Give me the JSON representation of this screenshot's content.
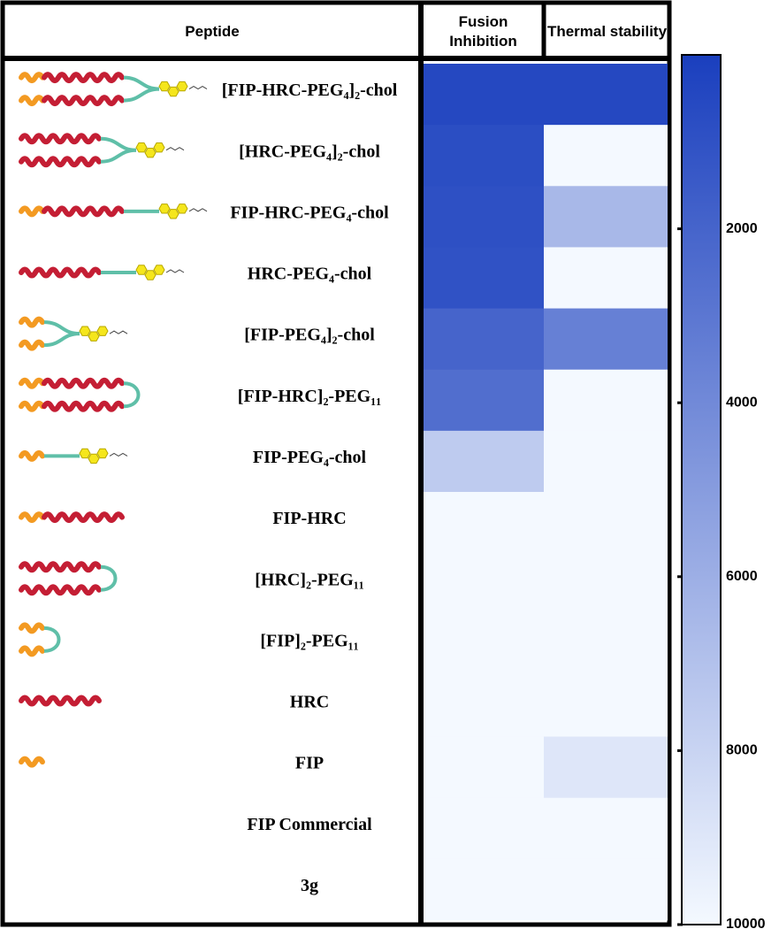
{
  "chart_data": {
    "type": "heatmap",
    "row_header": "Peptide",
    "categories": [
      "[FIP-HRC-PEG₄]₂-chol",
      "[HRC-PEG₄]₂-chol",
      "FIP-HRC-PEG₄-chol",
      "HRC-PEG₄-chol",
      "[FIP-PEG₄]₂-chol",
      "[FIP-HRC]₂-PEG₁₁",
      "FIP-PEG₄-chol",
      "FIP-HRC",
      "[HRC]₂-PEG₁₁",
      "[FIP]₂-PEG₁₁",
      "HRC",
      "FIP",
      "FIP Commercial",
      "3g"
    ],
    "series": [
      {
        "name": "Fusion Inhibition",
        "values": [
          500,
          800,
          900,
          1000,
          2000,
          2500,
          7500,
          10000,
          10000,
          10000,
          10000,
          10000,
          10000,
          10000
        ]
      },
      {
        "name": "Thermal stability",
        "values": [
          500,
          10000,
          6500,
          10000,
          3500,
          10000,
          10000,
          10000,
          10000,
          10000,
          10000,
          9000,
          10000,
          10000
        ]
      }
    ],
    "zlim": [
      0,
      10000
    ],
    "zticks": [
      2000,
      4000,
      6000,
      8000,
      10000
    ],
    "colormap": [
      "#1a3fbe",
      "#f4f9ff"
    ]
  }
}
